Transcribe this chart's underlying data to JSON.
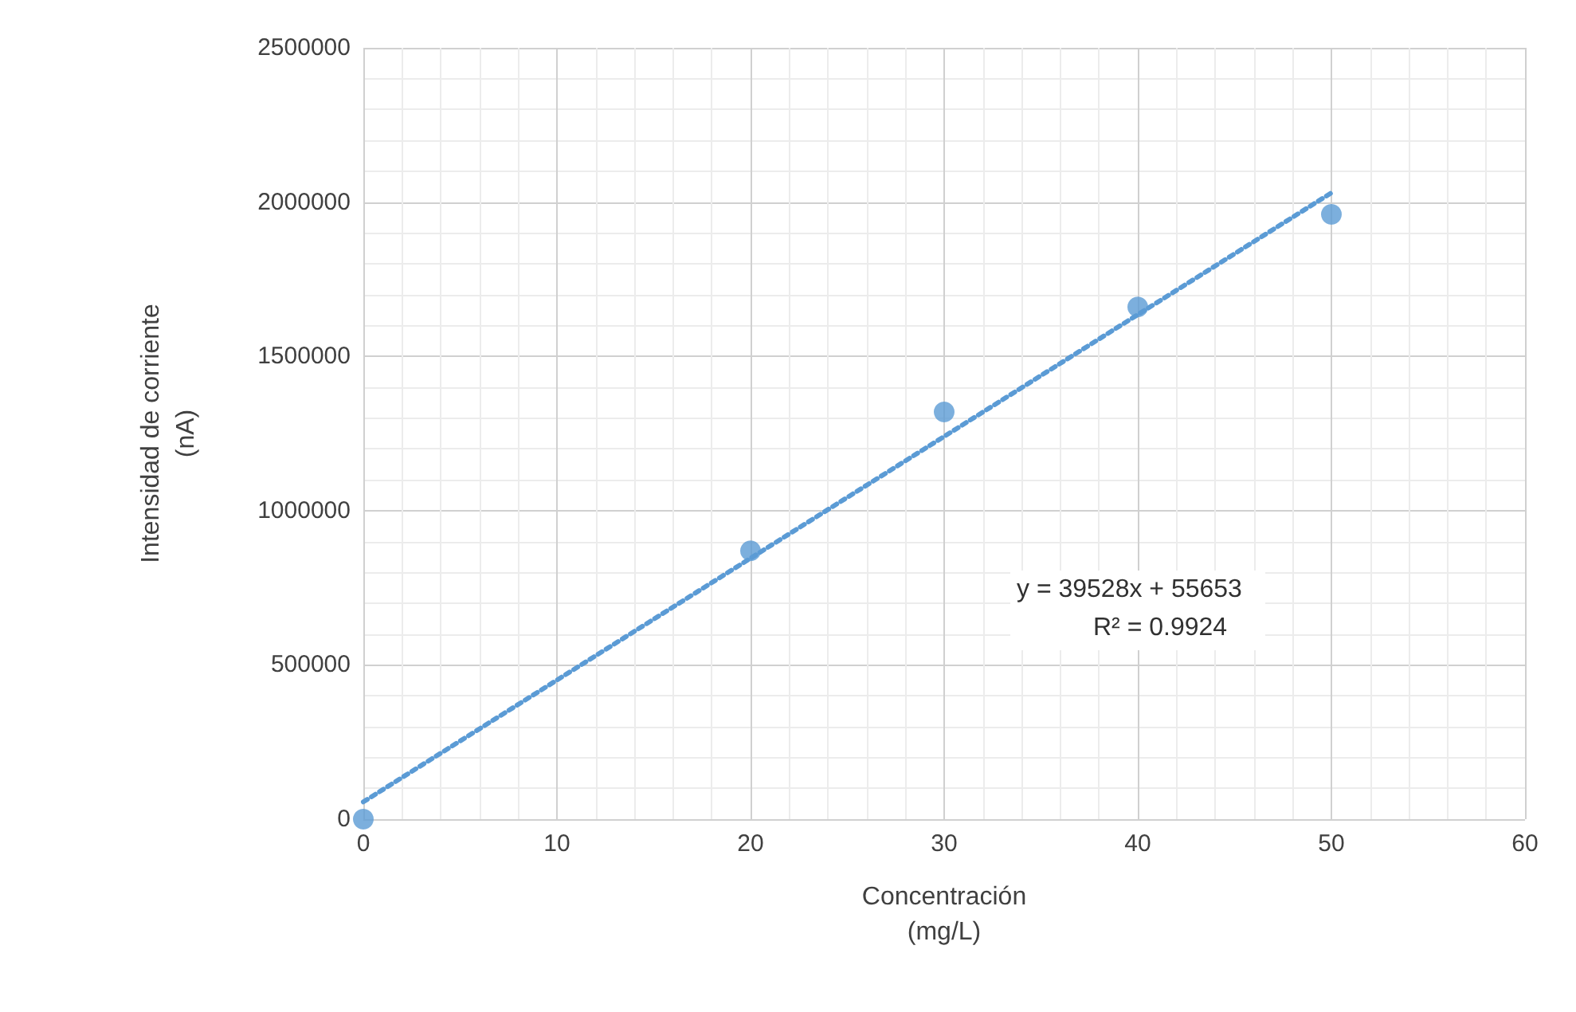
{
  "chart_data": {
    "type": "scatter",
    "xlabel": "Concentración\n(mg/L)",
    "ylabel": "Intensidad de corriente\n(nA)",
    "xlim": [
      0,
      60
    ],
    "xticks": [
      0,
      10,
      20,
      30,
      40,
      50,
      60
    ],
    "ylim": [
      0,
      2500000
    ],
    "yticks": [
      0,
      500000,
      1000000,
      1500000,
      2000000,
      2500000
    ],
    "grid": true,
    "marker": "circle",
    "series": [
      {
        "color": "#5b9bd5",
        "x": [
          0,
          20,
          30,
          40,
          50
        ],
        "values": [
          0,
          870000,
          1320000,
          1660000,
          1960000
        ]
      },
      {
        "type": "line",
        "color": "#5b9bd5",
        "x": [
          0,
          50
        ],
        "values": [
          56000,
          2030000
        ],
        "line_style": "dotted",
        "marker": "none"
      }
    ],
    "annotations": [
      "y = 39528x + 55653",
      "R² = 0.9924"
    ]
  }
}
